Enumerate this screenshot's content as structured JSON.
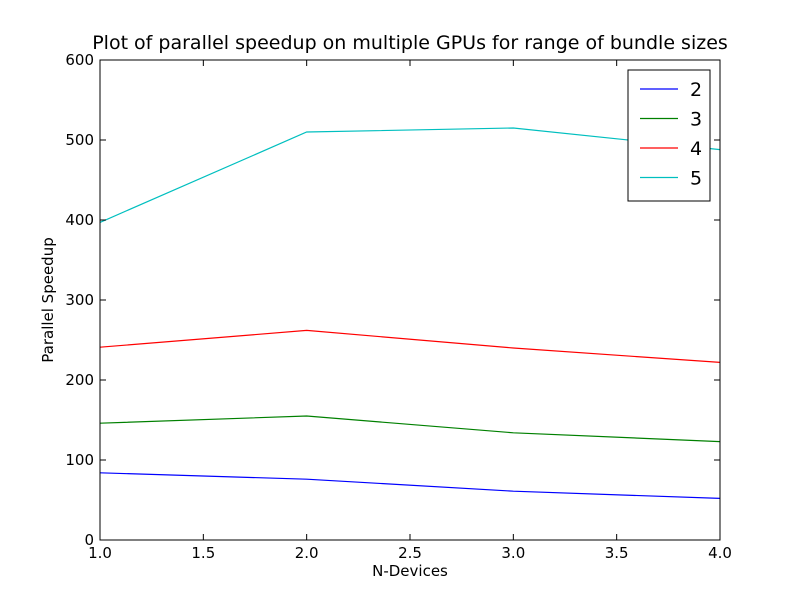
{
  "chart_data": {
    "type": "line",
    "title": "Plot of parallel speedup on multiple GPUs for range of bundle sizes",
    "xlabel": "N-Devices",
    "ylabel": "Parallel Speedup",
    "xlim": [
      1.0,
      4.0
    ],
    "ylim": [
      0,
      600
    ],
    "xticks": [
      "1.0",
      "1.5",
      "2.0",
      "2.5",
      "3.0",
      "3.5",
      "4.0"
    ],
    "yticks": [
      "0",
      "100",
      "200",
      "300",
      "400",
      "500",
      "600"
    ],
    "grid": false,
    "legend_position": "top-right",
    "x": [
      1.0,
      2.0,
      3.0,
      4.0
    ],
    "series": [
      {
        "name": "2",
        "color": "#0000ff",
        "values": [
          84,
          76,
          61,
          52
        ]
      },
      {
        "name": "3",
        "color": "#008000",
        "values": [
          146,
          155,
          134,
          123
        ]
      },
      {
        "name": "4",
        "color": "#ff0000",
        "values": [
          241,
          262,
          240,
          222
        ]
      },
      {
        "name": "5",
        "color": "#00bfbf",
        "values": [
          397,
          510,
          515,
          488
        ]
      }
    ]
  }
}
